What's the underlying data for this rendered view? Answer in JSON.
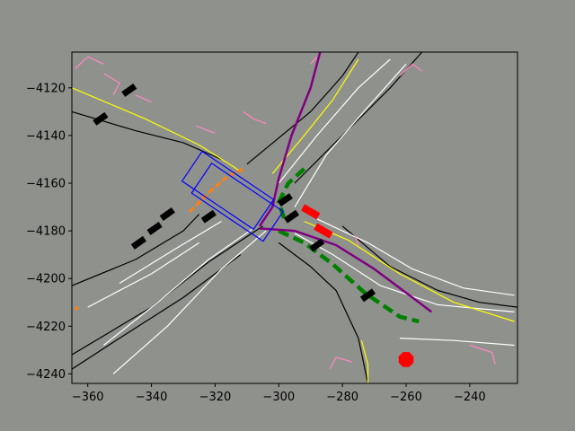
{
  "chart_data": {
    "type": "line",
    "title": "",
    "xlabel": "",
    "ylabel": "",
    "xlim": [
      -365,
      -225
    ],
    "ylim": [
      -4244,
      -4105
    ],
    "grid": false,
    "legend": "none",
    "x_ticks": [
      -360,
      -340,
      -320,
      -300,
      -280,
      -260,
      -240
    ],
    "y_ticks": [
      -4120,
      -4140,
      -4160,
      -4180,
      -4200,
      -4220,
      -4240
    ],
    "x_tick_labels": [
      "−360",
      "−340",
      "−320",
      "−300",
      "−280",
      "−260",
      "−240"
    ],
    "y_tick_labels": [
      "−4120",
      "−4140",
      "−4160",
      "−4180",
      "−4200",
      "−4220",
      "−4240"
    ],
    "colors": {
      "background": "#8f918d",
      "plot_area": "#8f918d",
      "road_edge": "#000000",
      "lane_line": "#ffffff",
      "center_line": "#ffff00",
      "crosswalk": "#ff88c2",
      "ego_box": "#0000ff",
      "ego_history": "#ff7f0e",
      "agent": "#000000",
      "agent_highlight": "#ff0000",
      "prediction": "#007f00",
      "ground_truth": "#800080",
      "stop_sign": "#ff0000"
    },
    "series": [
      {
        "role": "road-edge",
        "points": [
          [
            -365,
            -4130
          ],
          [
            -345,
            -4138
          ],
          [
            -330,
            -4143
          ],
          [
            -318,
            -4150
          ]
        ]
      },
      {
        "role": "road-edge",
        "points": [
          [
            -365,
            -4203
          ],
          [
            -345,
            -4192
          ],
          [
            -330,
            -4180
          ],
          [
            -325,
            -4173
          ]
        ]
      },
      {
        "role": "road-edge",
        "points": [
          [
            -365,
            -4232
          ],
          [
            -340,
            -4212
          ],
          [
            -322,
            -4193
          ],
          [
            -305,
            -4178
          ]
        ]
      },
      {
        "role": "road-edge",
        "points": [
          [
            -365,
            -4238
          ],
          [
            -350,
            -4225
          ],
          [
            -330,
            -4208
          ],
          [
            -312,
            -4190
          ]
        ]
      },
      {
        "role": "road-edge",
        "points": [
          [
            -310,
            -4152
          ],
          [
            -290,
            -4130
          ],
          [
            -280,
            -4115
          ],
          [
            -275,
            -4105
          ]
        ]
      },
      {
        "role": "road-edge",
        "points": [
          [
            -295,
            -4160
          ],
          [
            -280,
            -4140
          ],
          [
            -265,
            -4120
          ],
          [
            -255,
            -4105
          ]
        ]
      },
      {
        "role": "road-edge",
        "points": [
          [
            -300,
            -4185
          ],
          [
            -290,
            -4195
          ],
          [
            -282,
            -4205
          ],
          [
            -275,
            -4225
          ],
          [
            -272,
            -4244
          ]
        ]
      },
      {
        "role": "road-edge",
        "points": [
          [
            -280,
            -4178
          ],
          [
            -265,
            -4195
          ],
          [
            -250,
            -4205
          ],
          [
            -237,
            -4210
          ],
          [
            -225,
            -4212
          ]
        ]
      },
      {
        "role": "lane-line",
        "points": [
          [
            -352,
            -4240
          ],
          [
            -335,
            -4220
          ],
          [
            -318,
            -4196
          ],
          [
            -304,
            -4180
          ]
        ]
      },
      {
        "role": "lane-line",
        "points": [
          [
            -355,
            -4228
          ],
          [
            -338,
            -4210
          ],
          [
            -322,
            -4192
          ],
          [
            -308,
            -4179
          ]
        ]
      },
      {
        "role": "lane-line",
        "points": [
          [
            -360,
            -4212
          ],
          [
            -340,
            -4198
          ],
          [
            -325,
            -4185
          ]
        ]
      },
      {
        "role": "lane-line",
        "points": [
          [
            -350,
            -4202
          ],
          [
            -333,
            -4188
          ],
          [
            -318,
            -4176
          ]
        ]
      },
      {
        "role": "lane-line",
        "points": [
          [
            -300,
            -4160
          ],
          [
            -288,
            -4140
          ],
          [
            -275,
            -4120
          ],
          [
            -265,
            -4108
          ]
        ]
      },
      {
        "role": "lane-line",
        "points": [
          [
            -295,
            -4170
          ],
          [
            -285,
            -4148
          ],
          [
            -272,
            -4128
          ],
          [
            -260,
            -4110
          ]
        ]
      },
      {
        "role": "lane-line",
        "points": [
          [
            -295,
            -4181
          ],
          [
            -283,
            -4190
          ],
          [
            -268,
            -4203
          ],
          [
            -250,
            -4211
          ],
          [
            -226,
            -4214
          ]
        ]
      },
      {
        "role": "lane-line",
        "points": [
          [
            -288,
            -4175
          ],
          [
            -272,
            -4185
          ],
          [
            -258,
            -4196
          ],
          [
            -242,
            -4204
          ],
          [
            -226,
            -4207
          ]
        ]
      },
      {
        "role": "lane-line",
        "points": [
          [
            -262,
            -4225
          ],
          [
            -245,
            -4226
          ],
          [
            -226,
            -4228
          ]
        ]
      },
      {
        "role": "center-line",
        "points": [
          [
            -365,
            -4120
          ],
          [
            -342,
            -4133
          ],
          [
            -325,
            -4144
          ],
          [
            -312,
            -4155
          ]
        ]
      },
      {
        "role": "center-line",
        "points": [
          [
            -302,
            -4156
          ],
          [
            -292,
            -4140
          ],
          [
            -283,
            -4125
          ],
          [
            -275,
            -4108
          ]
        ]
      },
      {
        "role": "center-line",
        "points": [
          [
            -292,
            -4176
          ],
          [
            -278,
            -4184
          ],
          [
            -262,
            -4198
          ],
          [
            -245,
            -4210
          ],
          [
            -226,
            -4218
          ]
        ]
      },
      {
        "role": "center-line",
        "points": [
          [
            -274,
            -4226
          ],
          [
            -272,
            -4236
          ],
          [
            -272,
            -4244
          ]
        ]
      },
      {
        "role": "crosswalk",
        "points": [
          [
            -364,
            -4112
          ],
          [
            -360,
            -4107
          ],
          [
            -355,
            -4110
          ]
        ]
      },
      {
        "role": "crosswalk",
        "points": [
          [
            -355,
            -4114
          ],
          [
            -350,
            -4118
          ],
          [
            -352,
            -4123
          ]
        ]
      },
      {
        "role": "crosswalk",
        "points": [
          [
            -345,
            -4123
          ],
          [
            -340,
            -4126
          ]
        ]
      },
      {
        "role": "crosswalk",
        "points": [
          [
            -326,
            -4136
          ],
          [
            -320,
            -4139
          ]
        ]
      },
      {
        "role": "crosswalk",
        "points": [
          [
            -311,
            -4130
          ],
          [
            -308,
            -4133
          ],
          [
            -304,
            -4135
          ]
        ]
      },
      {
        "role": "crosswalk",
        "points": [
          [
            -290,
            -4110
          ],
          [
            -288,
            -4107
          ]
        ]
      },
      {
        "role": "crosswalk",
        "points": [
          [
            -262,
            -4115
          ],
          [
            -258,
            -4110
          ],
          [
            -255,
            -4113
          ]
        ]
      },
      {
        "role": "crosswalk",
        "points": [
          [
            -240,
            -4228
          ],
          [
            -233,
            -4231
          ],
          [
            -232,
            -4236
          ]
        ]
      },
      {
        "role": "crosswalk",
        "points": [
          [
            -284,
            -4238
          ],
          [
            -282,
            -4233
          ],
          [
            -277,
            -4235
          ]
        ]
      },
      {
        "role": "crosswalk",
        "points": [
          [
            -276,
            -4182
          ],
          [
            -275,
            -4186
          ]
        ]
      },
      {
        "role": "ego-history",
        "points": [
          [
            -328,
            -4172
          ],
          [
            -322,
            -4164
          ],
          [
            -316,
            -4157
          ],
          [
            -311,
            -4154
          ]
        ]
      },
      {
        "role": "ego-history",
        "points": [
          [
            -364,
            -4213
          ],
          [
            -363,
            -4212
          ]
        ]
      },
      {
        "role": "prediction",
        "points": [
          [
            -292,
            -4154
          ],
          [
            -297,
            -4160
          ],
          [
            -300,
            -4168
          ],
          [
            -298,
            -4176
          ]
        ]
      },
      {
        "role": "prediction",
        "points": [
          [
            -300,
            -4180
          ],
          [
            -292,
            -4185
          ],
          [
            -283,
            -4194
          ],
          [
            -273,
            -4206
          ],
          [
            -262,
            -4216
          ],
          [
            -256,
            -4218
          ]
        ]
      },
      {
        "role": "ground-truth",
        "points": [
          [
            -287,
            -4105
          ],
          [
            -290,
            -4120
          ],
          [
            -296,
            -4140
          ],
          [
            -300,
            -4158
          ],
          [
            -302,
            -4170
          ],
          [
            -306,
            -4178
          ]
        ]
      },
      {
        "role": "ground-truth",
        "points": [
          [
            -306,
            -4179
          ],
          [
            -295,
            -4180
          ],
          [
            -282,
            -4186
          ],
          [
            -270,
            -4196
          ],
          [
            -258,
            -4208
          ],
          [
            -252,
            -4214
          ]
        ]
      }
    ],
    "agents": [
      {
        "x": -356,
        "y": -4133,
        "color": "agent"
      },
      {
        "x": -347,
        "y": -4121,
        "color": "agent"
      },
      {
        "x": -344,
        "y": -4185,
        "color": "agent"
      },
      {
        "x": -339,
        "y": -4179,
        "color": "agent"
      },
      {
        "x": -335,
        "y": -4173,
        "color": "agent"
      },
      {
        "x": -322,
        "y": -4174,
        "color": "agent"
      },
      {
        "x": -298,
        "y": -4167,
        "color": "agent"
      },
      {
        "x": -296,
        "y": -4174,
        "color": "agent"
      },
      {
        "x": -288,
        "y": -4186,
        "color": "agent"
      },
      {
        "x": -272,
        "y": -4207,
        "color": "agent"
      },
      {
        "x": -290,
        "y": -4172,
        "color": "agent_highlight"
      },
      {
        "x": -286,
        "y": -4180,
        "color": "agent_highlight"
      }
    ],
    "ego_boxes": [
      {
        "x": -316,
        "y": -4163
      },
      {
        "x": -313,
        "y": -4168
      }
    ],
    "markers": [
      {
        "x": -260,
        "y": -4234,
        "shape": "octagon",
        "color": "stop_sign"
      }
    ]
  }
}
